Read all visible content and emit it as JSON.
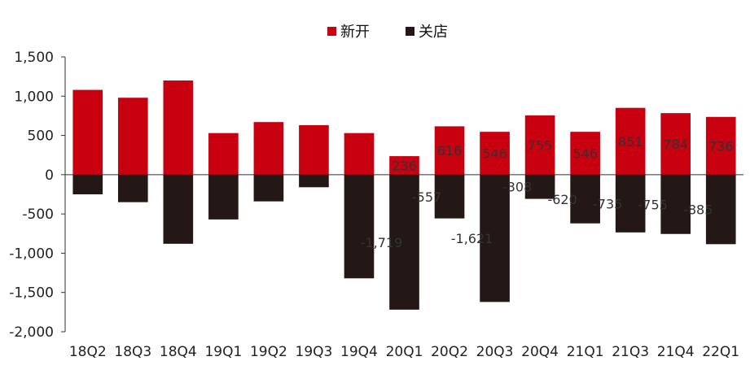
{
  "chart_data": {
    "type": "bar",
    "stacked": true,
    "categories": [
      "18Q2",
      "18Q3",
      "18Q4",
      "19Q1",
      "19Q2",
      "19Q3",
      "19Q4",
      "20Q1",
      "20Q2",
      "20Q3",
      "20Q4",
      "21Q1",
      "21Q3",
      "21Q4",
      "22Q1"
    ],
    "series": [
      {
        "name": "新开",
        "color": "#c8000f",
        "values": [
          1080,
          980,
          1200,
          530,
          670,
          630,
          530,
          236,
          616,
          546,
          755,
          546,
          851,
          784,
          736
        ],
        "labels": [
          "",
          "",
          "",
          "",
          "",
          "",
          "",
          "236",
          "616",
          "546",
          "755",
          "546",
          "851",
          "784",
          "736"
        ]
      },
      {
        "name": "关店",
        "color": "#231816",
        "values": [
          -250,
          -350,
          -880,
          -570,
          -340,
          -160,
          -1320,
          -1719,
          -557,
          -1621,
          -308,
          -620,
          -735,
          -755,
          -885
        ],
        "labels": [
          "",
          "",
          "",
          "",
          "",
          "",
          "",
          "-1,719",
          "-557",
          "-1,621",
          "-308",
          "-620",
          "-735",
          "-755",
          "-885"
        ]
      }
    ],
    "ylim": [
      -2000,
      1500
    ],
    "yticks": [
      1500,
      1000,
      500,
      0,
      -500,
      -1000,
      -1500,
      -2000
    ],
    "ytick_labels": [
      "1,500",
      "1,000",
      "500",
      "0",
      "-500",
      "-1,000",
      "-1,500",
      "-2,000"
    ],
    "legend_position": "top-center",
    "grid": false,
    "title": "",
    "xlabel": "",
    "ylabel": ""
  }
}
